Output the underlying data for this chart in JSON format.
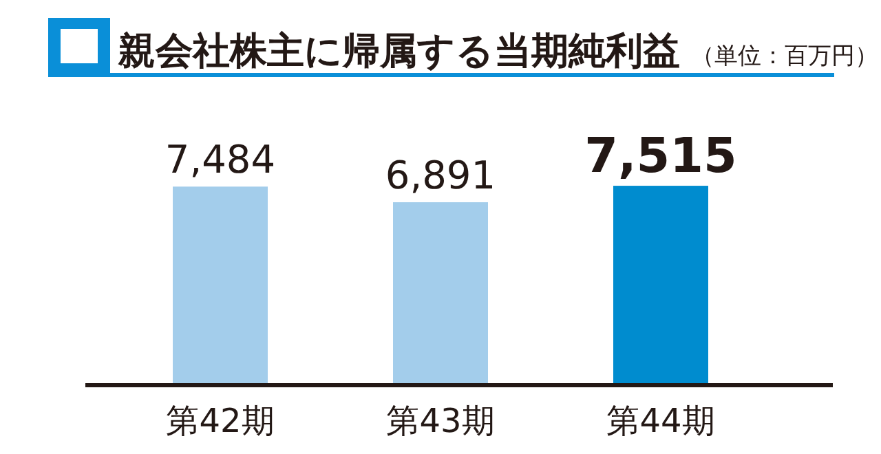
{
  "chart_data": {
    "type": "bar",
    "title": "親会社株主に帰属する当期純利益",
    "subtitle": "（単位：百万円）",
    "categories": [
      "第42期",
      "第43期",
      "第44期"
    ],
    "values": [
      7484,
      6891,
      7515
    ],
    "colors": [
      "#a3cdeb",
      "#a3cdeb",
      "#008ccf"
    ],
    "value_labels": [
      "7,484",
      "6,891",
      "**7,515**"
    ]
  }
}
